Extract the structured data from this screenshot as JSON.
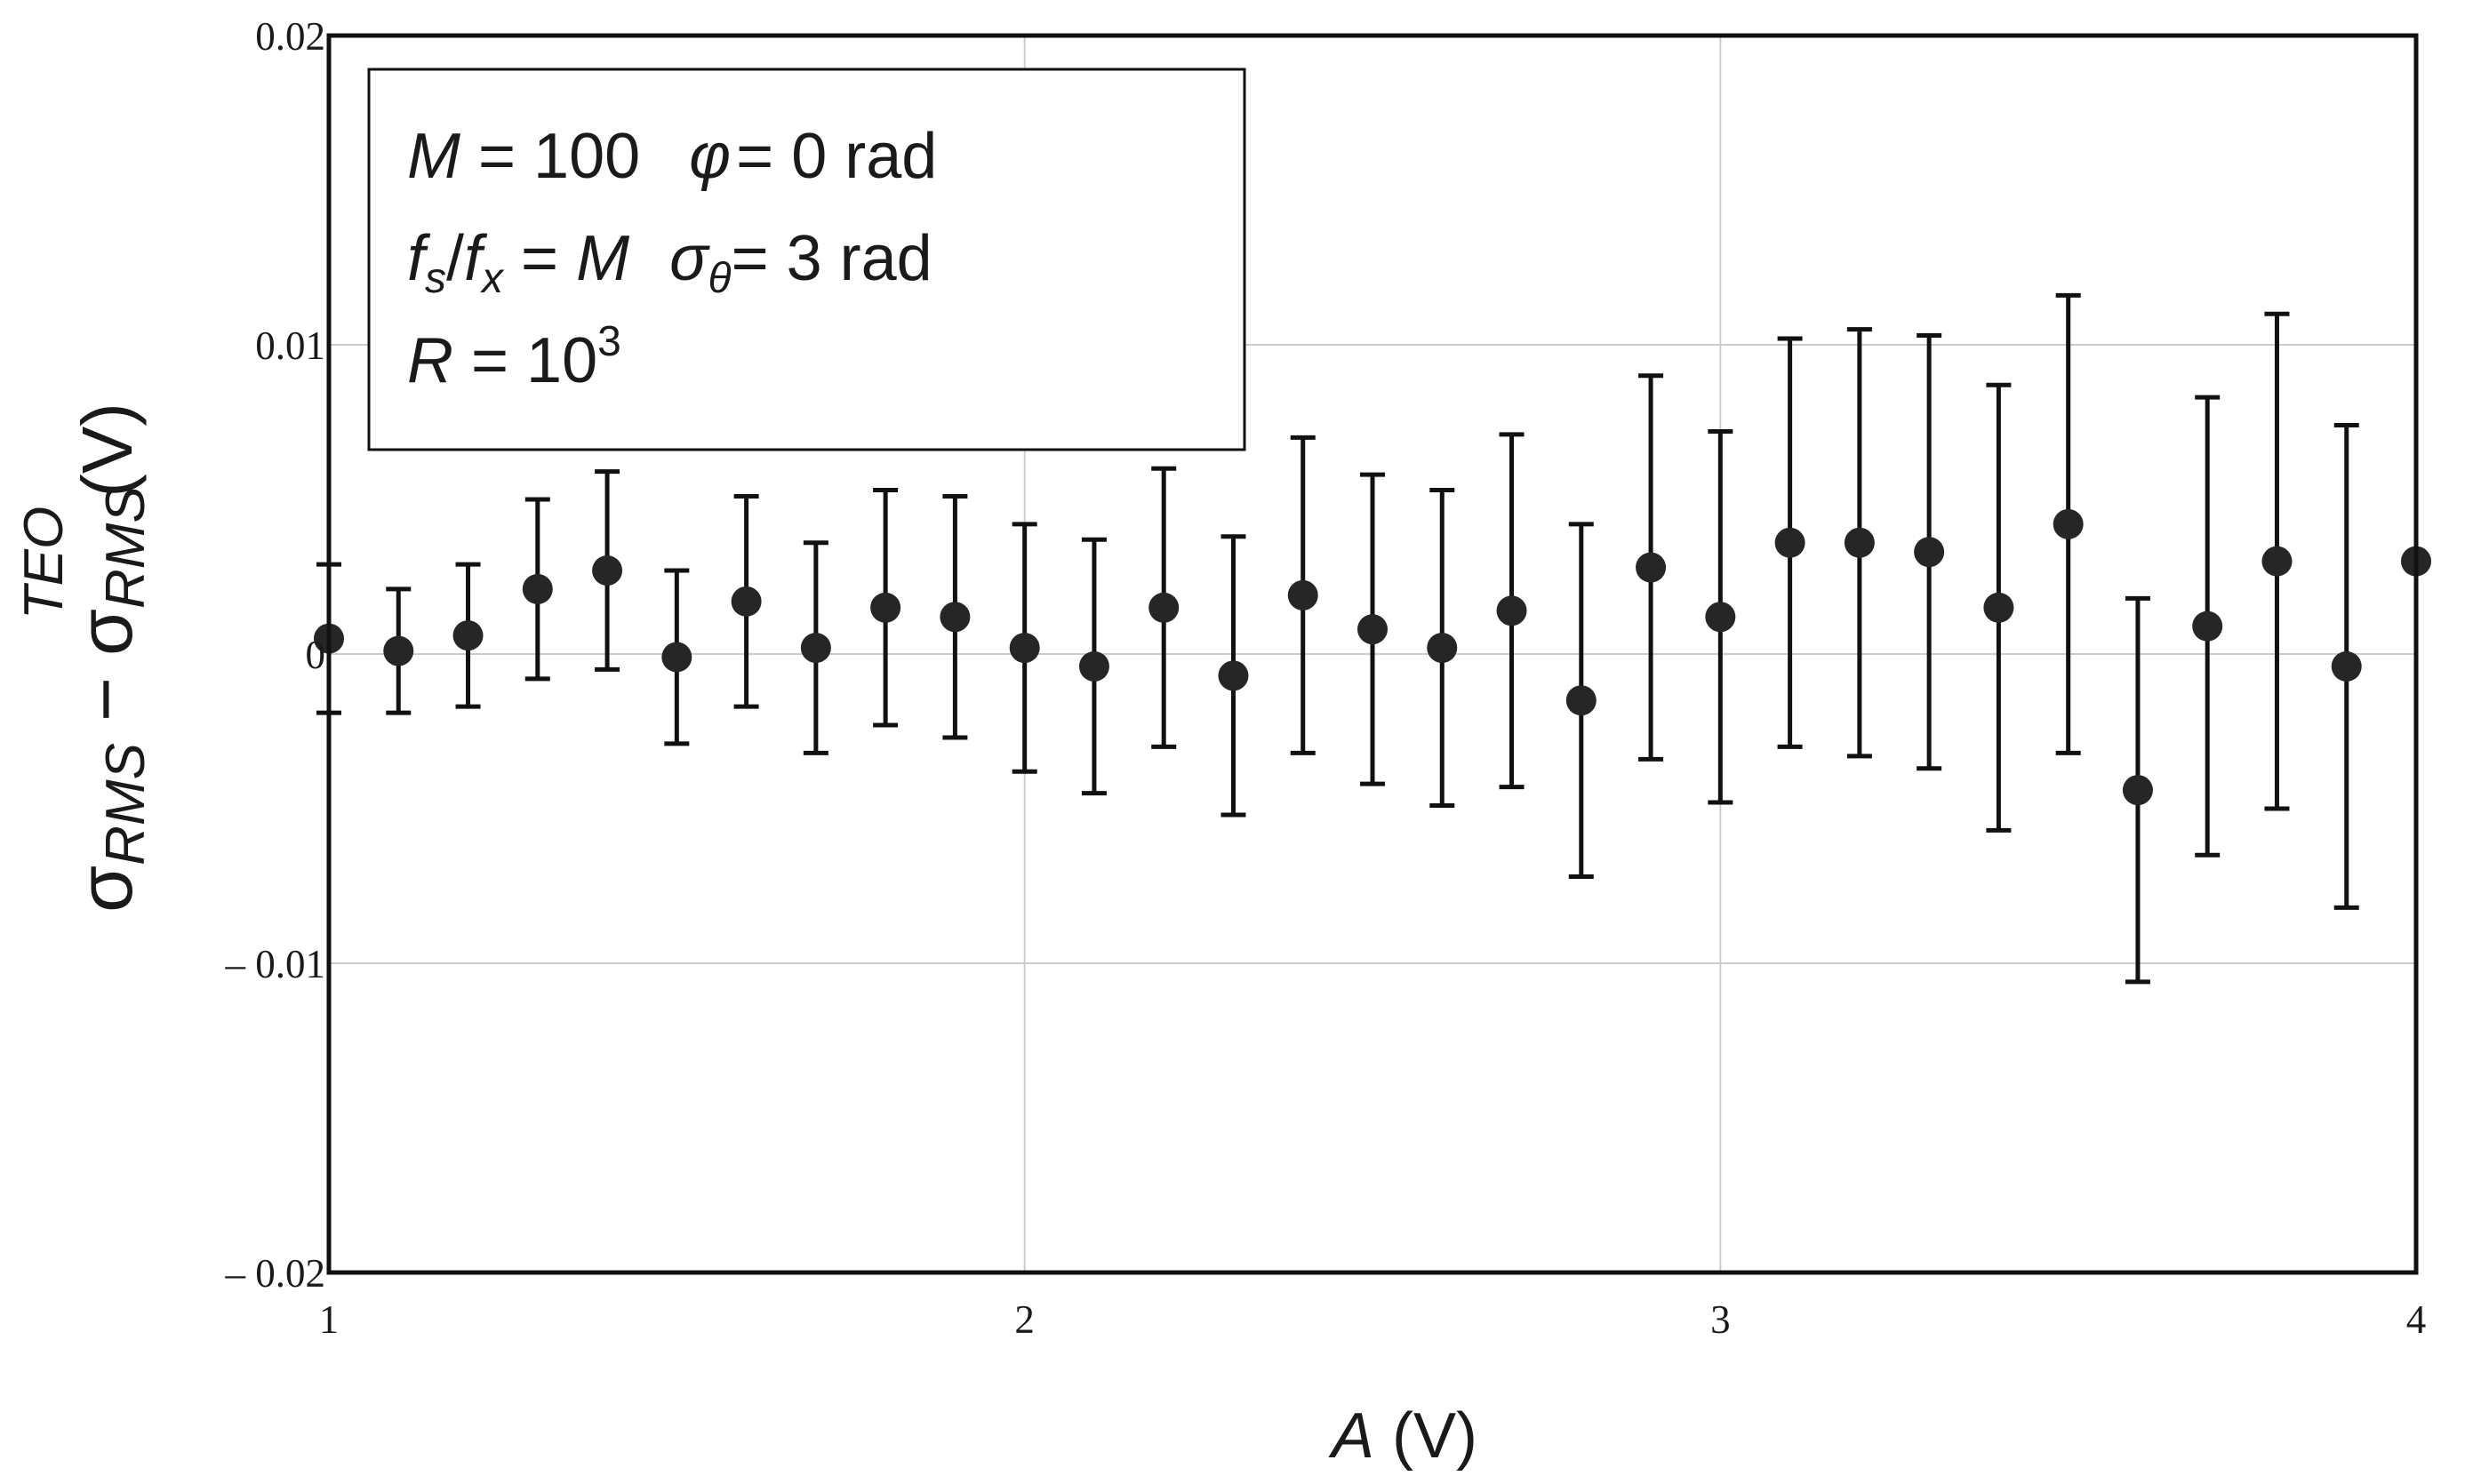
{
  "chart_data": {
    "type": "scatter",
    "x": [
      1.0,
      1.1,
      1.2,
      1.3,
      1.4,
      1.5,
      1.6,
      1.7,
      1.8,
      1.9,
      2.0,
      2.1,
      2.2,
      2.3,
      2.4,
      2.5,
      2.6,
      2.7,
      2.8,
      2.9,
      3.0,
      3.1,
      3.2,
      3.3,
      3.4,
      3.5,
      3.6,
      3.7,
      3.8,
      3.9,
      4.0
    ],
    "y": [
      0.0005,
      0.0001,
      0.0006,
      0.0021,
      0.0027,
      -0.0001,
      0.0017,
      0.0002,
      0.0015,
      0.0012,
      0.0002,
      -0.0004,
      0.0015,
      -0.0007,
      0.0019,
      0.0008,
      0.0002,
      0.0014,
      -0.0015,
      0.0028,
      0.0012,
      0.0036,
      0.0036,
      0.0033,
      0.0015,
      0.0042,
      -0.0044,
      0.0009,
      0.003,
      -0.0004,
      0.003
    ],
    "err": [
      0.0024,
      0.002,
      0.0023,
      0.0029,
      0.0032,
      0.0028,
      0.0034,
      0.0034,
      0.0038,
      0.0039,
      0.004,
      0.0041,
      0.0045,
      0.0045,
      0.0051,
      0.005,
      0.0051,
      0.0057,
      0.0057,
      0.0062,
      0.006,
      0.0066,
      0.0069,
      0.007,
      0.0072,
      0.0074,
      0.0062,
      0.0074,
      0.008,
      0.0078,
      0.0
    ],
    "xlim": [
      1,
      4
    ],
    "ylim": [
      -0.02,
      0.02
    ],
    "xticks": [
      1,
      2,
      3,
      4
    ],
    "xtick_labels": [
      "1",
      "2",
      "3",
      "4"
    ],
    "yticks": [
      -0.02,
      -0.01,
      0,
      0.01,
      0.02
    ],
    "ytick_labels": [
      "– 0.02",
      "– 0.01",
      "0",
      "0.01",
      "0.02"
    ],
    "xlabel": {
      "var": "A",
      "unit": " (V)"
    },
    "ylabel": {
      "sigma": "σ",
      "rms": "RMS",
      "minus": " − ",
      "teo": "TEO",
      "unit": "(V)"
    },
    "grid": true,
    "legend_box": {
      "line1_a": "M",
      "line1_b": " = 100",
      "line1_c": "φ",
      "line1_d": "= 0 rad",
      "line2_a": "f",
      "line2_b": "s",
      "line2_c": "/",
      "line2_d": "f",
      "line2_e": "x",
      "line2_f": " = ",
      "line2_g": "M",
      "line2_h": "σ",
      "line2_i": "θ",
      "line2_j": "= 3 rad",
      "line3_a": "R",
      "line3_b": " = 10",
      "line3_c": "3"
    },
    "colors": {
      "marker": "#262626",
      "axis": "#111111",
      "grid": "#cccccc"
    }
  }
}
